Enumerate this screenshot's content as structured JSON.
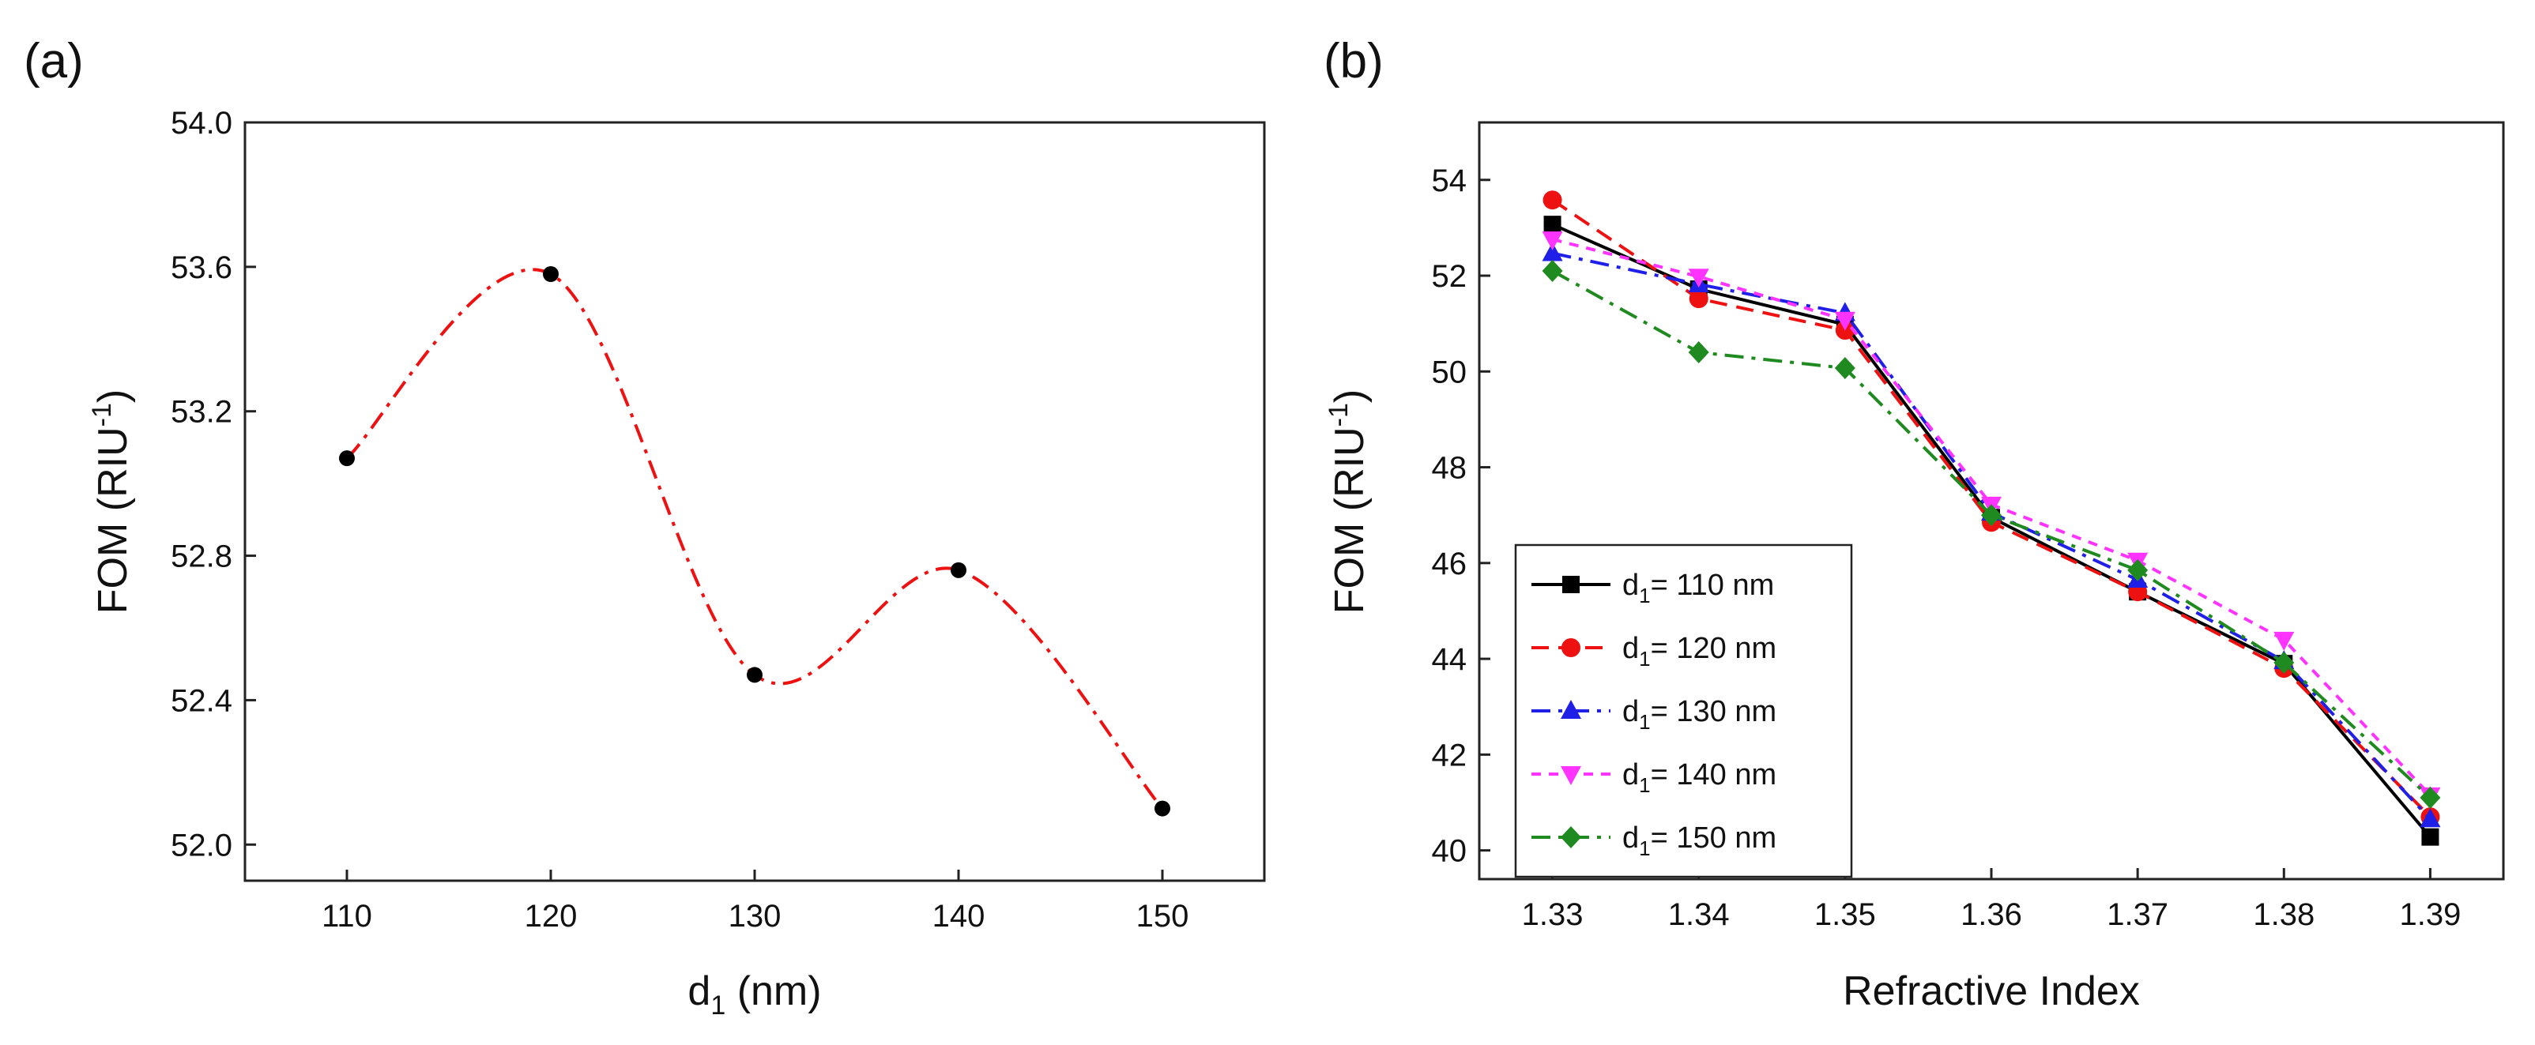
{
  "chart_data": [
    {
      "panel": "(a)",
      "type": "line",
      "xlabel": "d",
      "xlabel_sub": "1",
      "xlabel_tail": " (nm)",
      "ylabel": "FOM (RIU",
      "ylabel_sup": "-1",
      "ylabel_tail": ")",
      "xlim": [
        105,
        155
      ],
      "ylim": [
        51.9,
        54.0
      ],
      "xticks": [
        110,
        120,
        130,
        140,
        150
      ],
      "yticks": [
        52.0,
        52.4,
        52.8,
        53.2,
        53.6,
        54.0
      ],
      "ytick_labels": [
        "52.0",
        "52.4",
        "52.8",
        "53.2",
        "53.6",
        "54.0"
      ],
      "series": [
        {
          "name": "FOM",
          "x": [
            110,
            120,
            130,
            140,
            150
          ],
          "values": [
            53.07,
            53.58,
            52.47,
            52.76,
            52.1
          ],
          "line_color": "#ee1111",
          "marker_color": "#000000",
          "dash": "dashdot",
          "smooth": true
        }
      ]
    },
    {
      "panel": "(b)",
      "type": "line",
      "xlabel": "Refractive Index",
      "ylabel": "FOM (RIU",
      "ylabel_sup": "-1",
      "ylabel_tail": ")",
      "xlim": [
        1.325,
        1.395
      ],
      "ylim": [
        39.4,
        55.2
      ],
      "xticks": [
        1.33,
        1.34,
        1.35,
        1.36,
        1.37,
        1.38,
        1.39
      ],
      "xtick_labels": [
        "1.33",
        "1.34",
        "1.35",
        "1.36",
        "1.37",
        "1.38",
        "1.39"
      ],
      "yticks": [
        40,
        42,
        44,
        46,
        48,
        50,
        52,
        54
      ],
      "legend_position": "bottom-left",
      "x": [
        1.33,
        1.34,
        1.35,
        1.36,
        1.37,
        1.38,
        1.39
      ],
      "series": [
        {
          "name": "d",
          "name_sub": "1",
          "name_tail": "= 110 nm",
          "values": [
            53.07,
            51.72,
            50.98,
            46.95,
            45.4,
            43.9,
            40.28
          ],
          "color": "#000000",
          "marker": "square",
          "dash": "solid"
        },
        {
          "name": "d",
          "name_sub": "1",
          "name_tail": "= 120 nm",
          "values": [
            53.58,
            51.52,
            50.86,
            46.85,
            45.4,
            43.8,
            40.7
          ],
          "color": "#ee1111",
          "marker": "circle",
          "dash": "dash"
        },
        {
          "name": "d",
          "name_sub": "1",
          "name_tail": "= 130 nm",
          "values": [
            52.47,
            51.82,
            51.22,
            47.05,
            45.65,
            43.95,
            40.65
          ],
          "color": "#1f1fe8",
          "marker": "triangle-up",
          "dash": "dashdot"
        },
        {
          "name": "d",
          "name_sub": "1",
          "name_tail": "= 140 nm",
          "values": [
            52.76,
            51.98,
            51.08,
            47.22,
            46.05,
            44.4,
            41.15
          ],
          "color": "#ff33ff",
          "marker": "triangle-down",
          "dash": "shortdash"
        },
        {
          "name": "d",
          "name_sub": "1",
          "name_tail": "= 150 nm",
          "values": [
            52.1,
            50.4,
            50.07,
            47.0,
            45.85,
            43.92,
            41.1
          ],
          "color": "#1f8a1f",
          "marker": "diamond",
          "dash": "dashdot"
        }
      ]
    }
  ]
}
